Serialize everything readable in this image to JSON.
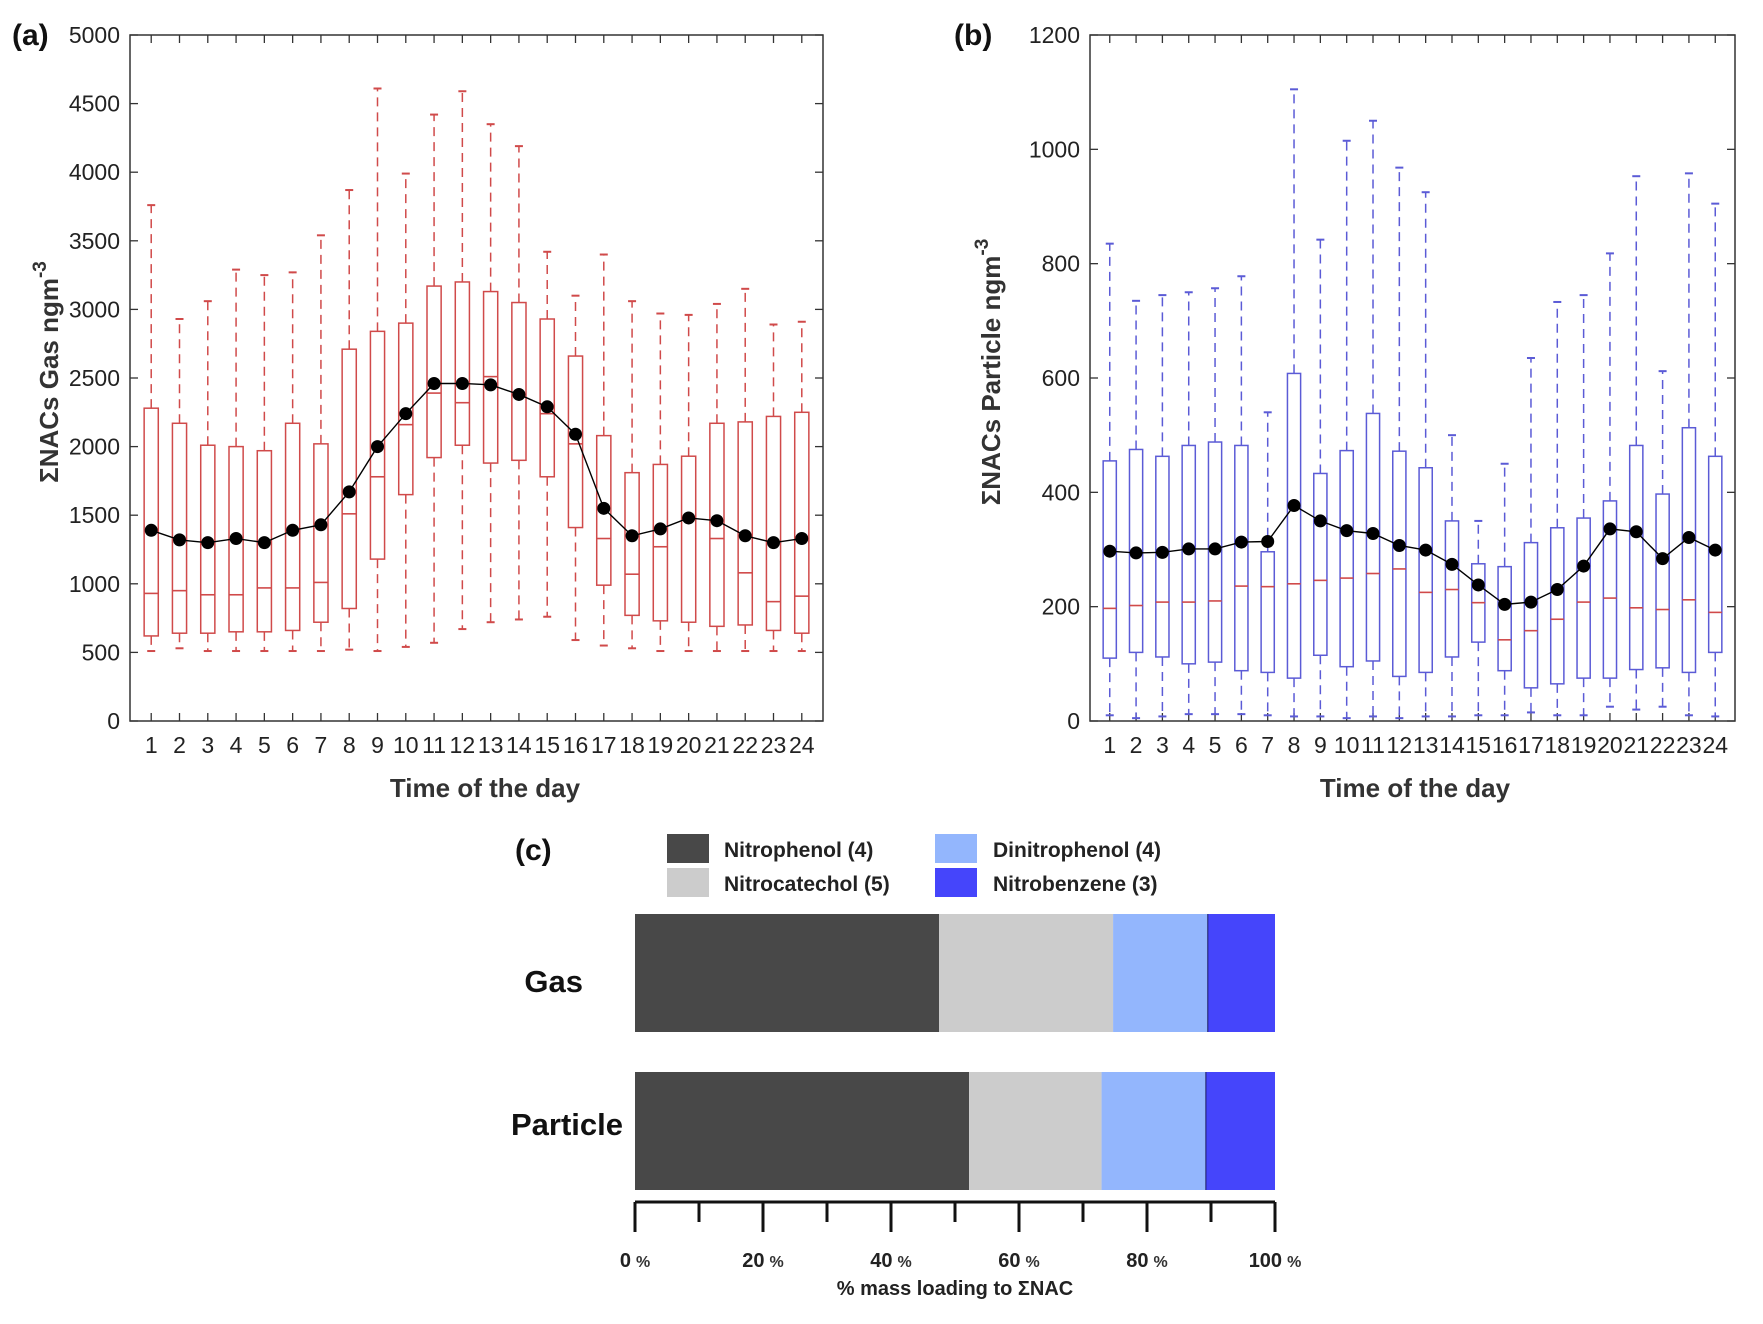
{
  "chart_data": [
    {
      "id": "a",
      "panel_label": "(a)",
      "type": "box",
      "box_color": "#d04a4a",
      "median_color": "#d04a4a",
      "mean_color": "#000000",
      "xlabel": "Time of the day",
      "ylabel": "ΣNACs Gas ngm",
      "ylabel_sup": "-3",
      "ylim": [
        0,
        5000
      ],
      "yticks": [
        0,
        500,
        1000,
        1500,
        2000,
        2500,
        3000,
        3500,
        4000,
        4500,
        5000
      ],
      "categories": [
        "1",
        "2",
        "3",
        "4",
        "5",
        "6",
        "7",
        "8",
        "9",
        "10",
        "11",
        "12",
        "13",
        "14",
        "15",
        "16",
        "17",
        "18",
        "19",
        "20",
        "21",
        "22",
        "23",
        "24"
      ],
      "q1": [
        620,
        640,
        640,
        650,
        650,
        660,
        720,
        820,
        1180,
        1650,
        1920,
        2010,
        1880,
        1900,
        1780,
        1410,
        990,
        770,
        730,
        720,
        690,
        700,
        660,
        640
      ],
      "q3": [
        2280,
        2170,
        2010,
        2000,
        1970,
        2170,
        2020,
        2710,
        2840,
        2900,
        3170,
        3200,
        3130,
        3050,
        2930,
        2660,
        2080,
        1810,
        1870,
        1930,
        2170,
        2180,
        2220,
        2250
      ],
      "median": [
        930,
        950,
        920,
        920,
        970,
        970,
        1010,
        1510,
        1780,
        2160,
        2390,
        2320,
        2510,
        2380,
        2240,
        2020,
        1330,
        1070,
        1270,
        1480,
        1330,
        1080,
        870,
        910
      ],
      "whisker_low": [
        510,
        530,
        510,
        510,
        510,
        510,
        510,
        520,
        510,
        540,
        570,
        670,
        720,
        740,
        760,
        590,
        550,
        530,
        510,
        510,
        510,
        510,
        510,
        510
      ],
      "whisker_high": [
        3760,
        2930,
        3060,
        3290,
        3250,
        3270,
        3540,
        3870,
        4610,
        3990,
        4420,
        4590,
        4350,
        4190,
        3420,
        3100,
        3400,
        3060,
        2970,
        2960,
        3040,
        3150,
        2890,
        2910
      ],
      "mean": [
        1390,
        1320,
        1300,
        1330,
        1300,
        1390,
        1430,
        1670,
        2000,
        2240,
        2460,
        2460,
        2450,
        2380,
        2290,
        2090,
        1550,
        1350,
        1400,
        1480,
        1460,
        1350,
        1300,
        1330
      ]
    },
    {
      "id": "b",
      "panel_label": "(b)",
      "type": "box",
      "box_color": "#5b5bd6",
      "median_color": "#d04a4a",
      "mean_color": "#000000",
      "xlabel": "Time of the day",
      "ylabel": "ΣNACs Particle ngm",
      "ylabel_sup": "-3",
      "ylim": [
        0,
        1200
      ],
      "yticks": [
        0,
        200,
        400,
        600,
        800,
        1000,
        1200
      ],
      "categories": [
        "1",
        "2",
        "3",
        "4",
        "5",
        "6",
        "7",
        "8",
        "9",
        "10",
        "11",
        "12",
        "13",
        "14",
        "15",
        "16",
        "17",
        "18",
        "19",
        "20",
        "21",
        "22",
        "23",
        "24"
      ],
      "q1": [
        110,
        120,
        112,
        100,
        103,
        88,
        85,
        75,
        115,
        95,
        105,
        78,
        85,
        112,
        138,
        88,
        58,
        65,
        75,
        75,
        90,
        93,
        85,
        120
      ],
      "q3": [
        455,
        475,
        463,
        482,
        488,
        482,
        296,
        608,
        433,
        473,
        538,
        472,
        443,
        350,
        275,
        270,
        312,
        338,
        355,
        385,
        482,
        397,
        513,
        463
      ],
      "median": [
        197,
        202,
        208,
        208,
        210,
        236,
        235,
        240,
        246,
        250,
        258,
        266,
        225,
        230,
        207,
        142,
        158,
        178,
        208,
        215,
        198,
        195,
        212,
        190
      ],
      "whisker_low": [
        10,
        5,
        8,
        12,
        12,
        12,
        10,
        8,
        8,
        5,
        8,
        5,
        8,
        8,
        10,
        10,
        15,
        10,
        10,
        25,
        20,
        25,
        10,
        8
      ],
      "whisker_high": [
        835,
        735,
        745,
        750,
        757,
        778,
        540,
        1105,
        842,
        1015,
        1050,
        968,
        925,
        500,
        350,
        450,
        635,
        733,
        745,
        818,
        953,
        612,
        958,
        905
      ],
      "mean": [
        297,
        294,
        295,
        301,
        301,
        313,
        314,
        377,
        350,
        333,
        328,
        307,
        299,
        274,
        238,
        204,
        208,
        230,
        271,
        336,
        331,
        284,
        321,
        299
      ]
    },
    {
      "id": "c",
      "panel_label": "(c)",
      "type": "stacked_bar",
      "orientation": "horizontal",
      "categories": [
        "Gas",
        "Particle"
      ],
      "series": [
        {
          "name": "Nitrophenol (4)",
          "color": "#484848",
          "values": [
            47.5,
            52.2
          ]
        },
        {
          "name": "Nitrocatechol (5)",
          "color": "#cccccc",
          "values": [
            27.2,
            20.7
          ]
        },
        {
          "name": "Dinitrophenol (4)",
          "color": "#93b6fd",
          "values": [
            14.8,
            16.3
          ]
        },
        {
          "name": "Nitrobenzene (3)",
          "color": "#4545fb",
          "values": [
            10.5,
            10.8
          ]
        }
      ],
      "xlabel": "% mass loading to ΣNAC",
      "xlim": [
        0,
        100
      ],
      "xticks": [
        0,
        20,
        40,
        60,
        80,
        100
      ],
      "tick_unit": "%"
    }
  ]
}
